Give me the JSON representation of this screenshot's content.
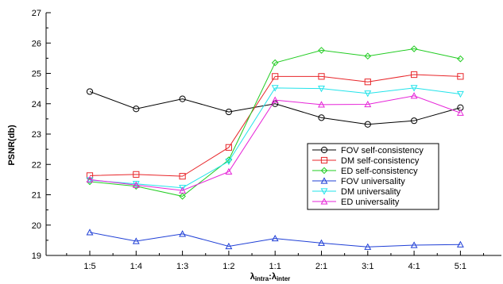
{
  "chart_data": {
    "type": "line",
    "xlabel": "λintra:λinter",
    "xlabel_main": "λ",
    "xlabel_sub1": "intra",
    "xlabel_sep": ":",
    "xlabel_sub2": "inter",
    "ylabel": "PSNR(db)",
    "ylim": [
      19,
      27
    ],
    "yticks": [
      19,
      20,
      21,
      22,
      23,
      24,
      25,
      26,
      27
    ],
    "ytick_labels": [
      "19",
      "20",
      "21",
      "22",
      "23",
      "24",
      "25",
      "26",
      "27"
    ],
    "categories": [
      "1:5",
      "1:4",
      "1:3",
      "1:2",
      "1:1",
      "2:1",
      "3:1",
      "4:1",
      "5:1"
    ],
    "grid": false,
    "legend_position": "lower-right",
    "series": [
      {
        "name": "FOV self-consistency",
        "color": "#000000",
        "marker": "circle",
        "values": [
          24.4,
          23.83,
          24.16,
          23.73,
          24.0,
          23.54,
          23.32,
          23.44,
          23.87
        ]
      },
      {
        "name": "DM self-consistency",
        "color": "#e8262a",
        "marker": "square",
        "values": [
          21.63,
          21.67,
          21.61,
          22.56,
          24.9,
          24.9,
          24.72,
          24.96,
          24.9
        ]
      },
      {
        "name": "ED self-consistency",
        "color": "#22cc22",
        "marker": "diamond",
        "values": [
          21.43,
          21.28,
          20.95,
          22.15,
          25.35,
          25.76,
          25.57,
          25.81,
          25.48
        ]
      },
      {
        "name": "FOV universality",
        "color": "#1f3fd6",
        "marker": "triangle-up",
        "values": [
          19.76,
          19.47,
          19.71,
          19.3,
          19.56,
          19.41,
          19.28,
          19.34,
          19.36
        ]
      },
      {
        "name": "DM universality",
        "color": "#22e3ea",
        "marker": "triangle-down",
        "values": [
          21.48,
          21.36,
          21.23,
          22.1,
          24.52,
          24.5,
          24.34,
          24.52,
          24.32
        ]
      },
      {
        "name": "ED universality",
        "color": "#e624d8",
        "marker": "triangle-up",
        "values": [
          21.5,
          21.32,
          21.14,
          21.76,
          24.12,
          23.97,
          23.98,
          24.26,
          23.7
        ]
      }
    ]
  }
}
